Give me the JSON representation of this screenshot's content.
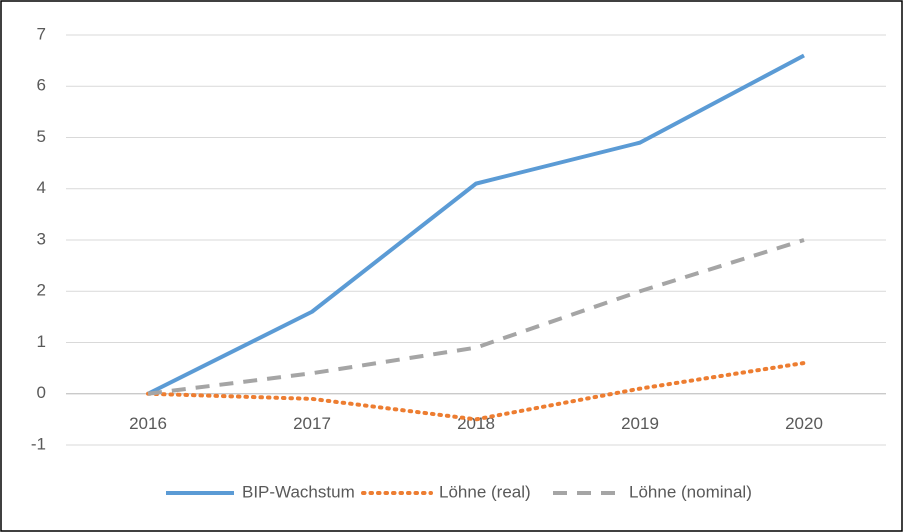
{
  "chart_data": {
    "type": "line",
    "categories": [
      "2016",
      "2017",
      "2018",
      "2019",
      "2020"
    ],
    "series": [
      {
        "name": "BIP-Wachstum",
        "color": "#5b9bd5",
        "dash": "solid",
        "values": [
          0,
          1.6,
          4.1,
          4.9,
          6.6
        ]
      },
      {
        "name": "Löhne (real)",
        "color": "#ed7d31",
        "dash": "dotted",
        "values": [
          0,
          -0.1,
          -0.5,
          0.1,
          0.6
        ]
      },
      {
        "name": "Löhne (nominal)",
        "color": "#a5a5a5",
        "dash": "dashed",
        "values": [
          0,
          0.4,
          0.9,
          2.0,
          3.0
        ]
      }
    ],
    "ylim": [
      -1,
      7
    ],
    "yticks": [
      -1,
      0,
      1,
      2,
      3,
      4,
      5,
      6,
      7
    ],
    "grid": true,
    "legend": "bottom"
  }
}
